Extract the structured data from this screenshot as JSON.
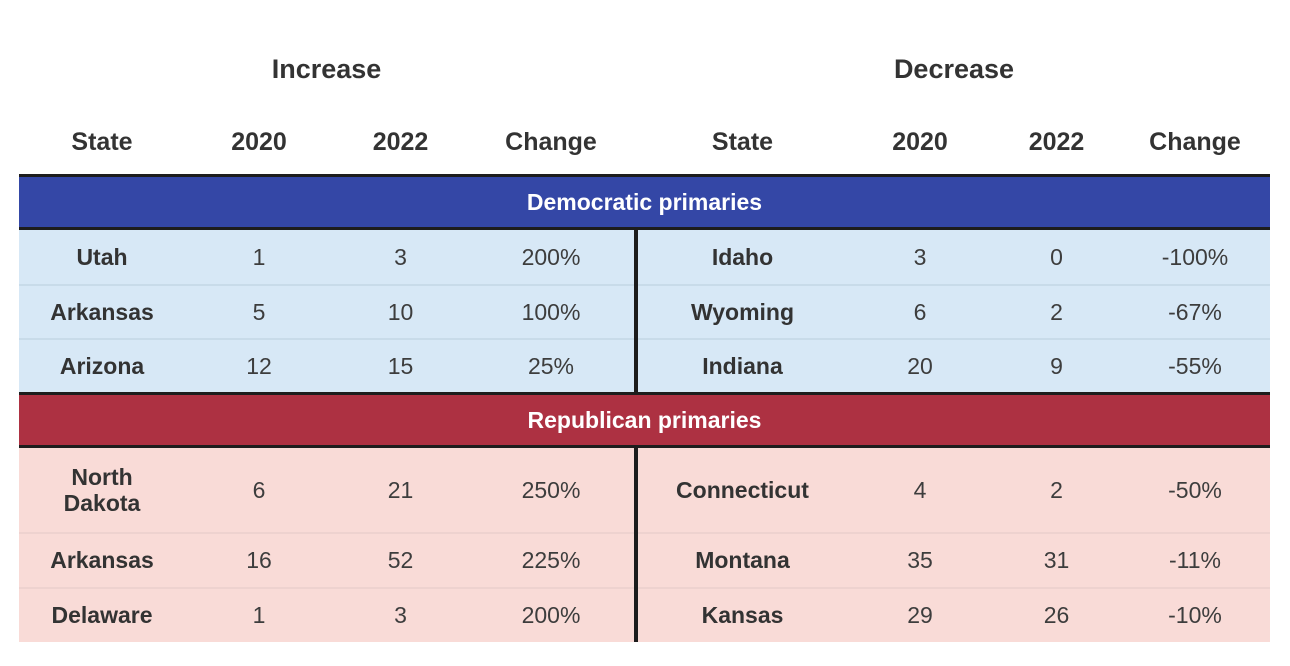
{
  "colors": {
    "democratic_band": "#3447a6",
    "republican_band": "#ad3142",
    "democratic_row_bg": "#d7e8f6",
    "republican_row_bg": "#f9dbd7",
    "band_text": "#ffffff",
    "divider": "#1c1c1c",
    "header_text": "#333333"
  },
  "table": {
    "group_headers": [
      {
        "label": "Increase"
      },
      {
        "label": "Decrease"
      }
    ],
    "column_headers_left": [
      "State",
      "2020",
      "2022",
      "Change"
    ],
    "column_headers_right": [
      "State",
      "2020",
      "2022",
      "Change"
    ],
    "sections": [
      {
        "title": "Democratic primaries",
        "left_rows": [
          {
            "state": "Utah",
            "v2020": "1",
            "v2022": "3",
            "change": "200%"
          },
          {
            "state": "Arkansas",
            "v2020": "5",
            "v2022": "10",
            "change": "100%"
          },
          {
            "state": "Arizona",
            "v2020": "12",
            "v2022": "15",
            "change": "25%"
          }
        ],
        "right_rows": [
          {
            "state": "Idaho",
            "v2020": "3",
            "v2022": "0",
            "change": "-100%"
          },
          {
            "state": "Wyoming",
            "v2020": "6",
            "v2022": "2",
            "change": "-67%"
          },
          {
            "state": "Indiana",
            "v2020": "20",
            "v2022": "9",
            "change": "-55%"
          }
        ]
      },
      {
        "title": "Republican primaries",
        "left_rows": [
          {
            "state": "North Dakota",
            "v2020": "6",
            "v2022": "21",
            "change": "250%"
          },
          {
            "state": "Arkansas",
            "v2020": "16",
            "v2022": "52",
            "change": "225%"
          },
          {
            "state": "Delaware",
            "v2020": "1",
            "v2022": "3",
            "change": "200%"
          }
        ],
        "right_rows": [
          {
            "state": "Connecticut",
            "v2020": "4",
            "v2022": "2",
            "change": "-50%"
          },
          {
            "state": "Montana",
            "v2020": "35",
            "v2022": "31",
            "change": "-11%"
          },
          {
            "state": "Kansas",
            "v2020": "29",
            "v2022": "26",
            "change": "-10%"
          }
        ]
      }
    ]
  }
}
